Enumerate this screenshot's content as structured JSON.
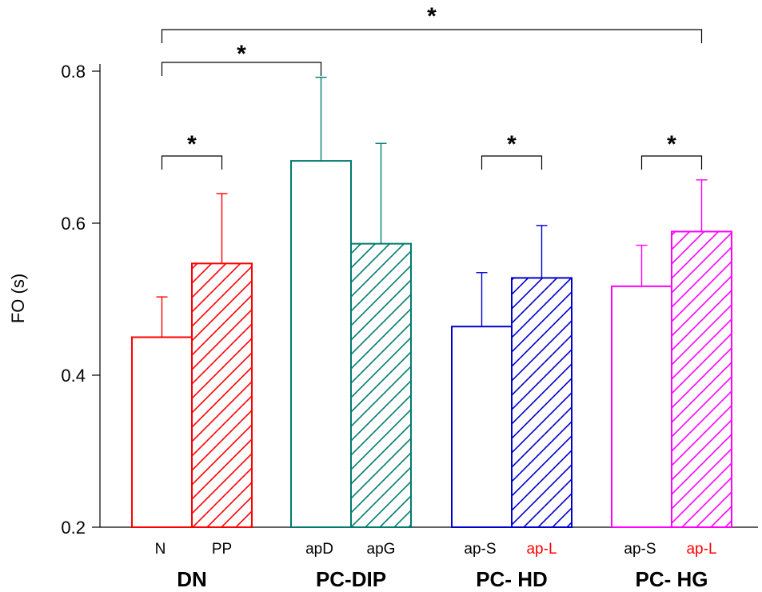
{
  "chart_data": {
    "type": "bar",
    "title": "",
    "xlabel": "",
    "ylabel": "FO (s)",
    "ylim": [
      0.2,
      0.8
    ],
    "yticks": [
      "0.2",
      "0.4",
      "0.6",
      "0.8"
    ],
    "grid": false,
    "groups": [
      {
        "name": "DN",
        "color": "#ff0000",
        "bars": [
          {
            "label": "N",
            "label_color": "#000000",
            "value": 0.45,
            "error": 0.053,
            "pattern": "open"
          },
          {
            "label": "PP",
            "label_color": "#000000",
            "value": 0.547,
            "error": 0.092,
            "pattern": "hatched"
          }
        ]
      },
      {
        "name": "PC-DIP",
        "color": "#007b70",
        "bars": [
          {
            "label": "apD",
            "label_color": "#000000",
            "value": 0.682,
            "error": 0.11,
            "pattern": "open"
          },
          {
            "label": "apG",
            "label_color": "#000000",
            "value": 0.573,
            "error": 0.132,
            "pattern": "hatched"
          }
        ]
      },
      {
        "name": "PC- HD",
        "color": "#0000cc",
        "bars": [
          {
            "label": "ap-S",
            "label_color": "#000000",
            "value": 0.464,
            "error": 0.071,
            "pattern": "open"
          },
          {
            "label": "ap-L",
            "label_color": "#ff0000",
            "value": 0.528,
            "error": 0.069,
            "pattern": "hatched"
          }
        ]
      },
      {
        "name": "PC- HG",
        "color": "#ff00ff",
        "bars": [
          {
            "label": "ap-S",
            "label_color": "#000000",
            "value": 0.517,
            "error": 0.054,
            "pattern": "open"
          },
          {
            "label": "ap-L",
            "label_color": "#ff0000",
            "value": 0.589,
            "error": 0.068,
            "pattern": "hatched"
          }
        ]
      }
    ],
    "significance": [
      {
        "label": "*",
        "from": "DN N",
        "to": "DN PP"
      },
      {
        "label": "*",
        "from": "PC- HD ap-S",
        "to": "PC- HD ap-L"
      },
      {
        "label": "*",
        "from": "PC- HG ap-S",
        "to": "PC- HG ap-L"
      },
      {
        "label": "*",
        "from": "DN N",
        "to": "PC-DIP apD"
      },
      {
        "label": "*",
        "from": "DN N",
        "to": "PC- HG ap-L"
      }
    ]
  }
}
